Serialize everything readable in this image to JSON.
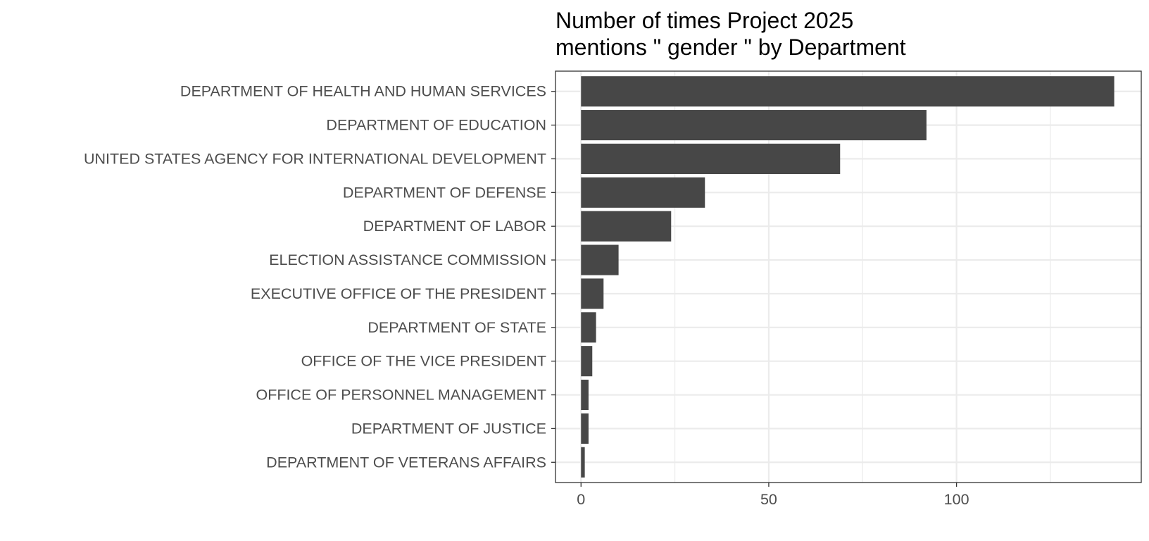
{
  "chart_data": {
    "type": "bar",
    "orientation": "horizontal",
    "title": [
      "Number of times Project 2025",
      "mentions \" gender \" by Department"
    ],
    "xlabel": "",
    "ylabel": "",
    "categories": [
      "DEPARTMENT OF HEALTH AND HUMAN SERVICES",
      "DEPARTMENT OF EDUCATION",
      "UNITED STATES AGENCY FOR INTERNATIONAL DEVELOPMENT",
      "DEPARTMENT OF DEFENSE",
      "DEPARTMENT OF LABOR",
      "ELECTION ASSISTANCE COMMISSION",
      "EXECUTIVE OFFICE OF THE PRESIDENT",
      "DEPARTMENT OF STATE",
      "OFFICE OF THE VICE PRESIDENT",
      "OFFICE OF PERSONNEL MANAGEMENT",
      "DEPARTMENT OF JUSTICE",
      "DEPARTMENT OF VETERANS AFFAIRS"
    ],
    "values": [
      142,
      92,
      69,
      33,
      24,
      10,
      6,
      4,
      3,
      2,
      2,
      1
    ],
    "xlim": [
      -6.8,
      149.2
    ],
    "x_ticks": [
      0,
      50,
      100
    ],
    "x_tick_labels": [
      "0",
      "50",
      "100"
    ],
    "x_minor_ticks": [
      25,
      75,
      125
    ],
    "grid": true,
    "legend": "none",
    "bar_color": "#474747",
    "grid_color": "#ebebeb",
    "panel_border_color": "#333333",
    "tick_label_color": "#4d4d4d",
    "title_color": "#000000"
  }
}
